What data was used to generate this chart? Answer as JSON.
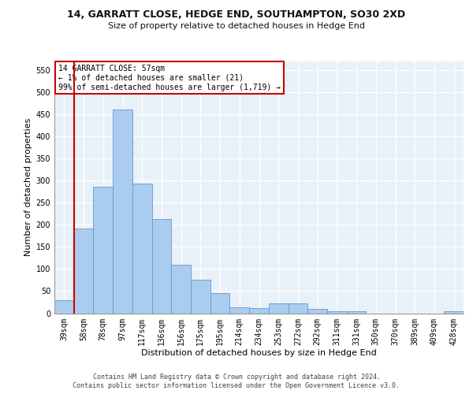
{
  "title1": "14, GARRATT CLOSE, HEDGE END, SOUTHAMPTON, SO30 2XD",
  "title2": "Size of property relative to detached houses in Hedge End",
  "xlabel": "Distribution of detached houses by size in Hedge End",
  "ylabel": "Number of detached properties",
  "categories": [
    "39sqm",
    "58sqm",
    "78sqm",
    "97sqm",
    "117sqm",
    "136sqm",
    "156sqm",
    "175sqm",
    "195sqm",
    "214sqm",
    "234sqm",
    "253sqm",
    "272sqm",
    "292sqm",
    "311sqm",
    "331sqm",
    "350sqm",
    "370sqm",
    "389sqm",
    "409sqm",
    "428sqm"
  ],
  "values": [
    30,
    192,
    286,
    460,
    293,
    213,
    110,
    75,
    46,
    14,
    12,
    22,
    22,
    9,
    5,
    5,
    0,
    0,
    0,
    0,
    5
  ],
  "bar_color": "#aaccee",
  "bar_edge_color": "#6699cc",
  "annotation_line1": "14 GARRATT CLOSE: 57sqm",
  "annotation_line2": "← 1% of detached houses are smaller (21)",
  "annotation_line3": "99% of semi-detached houses are larger (1,719) →",
  "annotation_box_color": "#cc0000",
  "ylim": [
    0,
    570
  ],
  "yticks": [
    0,
    50,
    100,
    150,
    200,
    250,
    300,
    350,
    400,
    450,
    500,
    550
  ],
  "background_color": "#e8f0f8",
  "grid_color": "#ffffff",
  "footer1": "Contains HM Land Registry data © Crown copyright and database right 2024.",
  "footer2": "Contains public sector information licensed under the Open Government Licence v3.0.",
  "red_line_x": 0.5,
  "title1_fontsize": 9,
  "title2_fontsize": 8,
  "ylabel_fontsize": 8,
  "xlabel_fontsize": 8,
  "tick_fontsize": 7,
  "annotation_fontsize": 7,
  "footer_fontsize": 6
}
